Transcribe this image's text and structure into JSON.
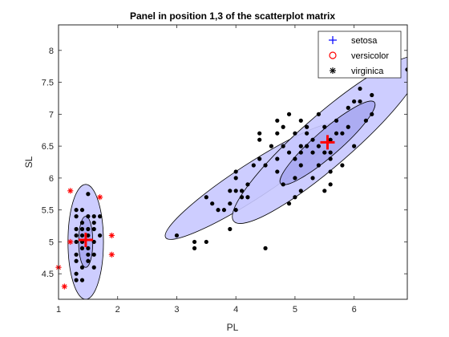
{
  "chart_data": {
    "type": "scatter",
    "title": "Panel in position 1,3 of the scatterplot matrix",
    "xlabel": "PL",
    "ylabel": "SL",
    "xlim": [
      1,
      6.9
    ],
    "ylim": [
      4.1,
      8.4
    ],
    "xticks": [
      1,
      2,
      3,
      4,
      5,
      6
    ],
    "yticks": [
      4.5,
      5,
      5.5,
      6,
      6.5,
      7,
      7.5,
      8
    ],
    "xtick_labels": [
      "1",
      "2",
      "3",
      "4",
      "5",
      "6"
    ],
    "ytick_labels": [
      "4.5",
      "5",
      "5.5",
      "6",
      "6.5",
      "7",
      "7.5",
      "8"
    ],
    "colors": {
      "setosa": "#0000ff",
      "versicolor": "#ff0000",
      "virginica": "#000000",
      "ellipse_fill": "#c8c8ff",
      "ellipse_inner_fill": "#a6a6f0",
      "outlier": "#ff0000",
      "centroid": "#ff0000"
    },
    "legend": {
      "location": "top-right",
      "entries": [
        {
          "label": "setosa",
          "marker": "plus",
          "color": "#0000ff"
        },
        {
          "label": "versicolor",
          "marker": "circle",
          "color": "#ff0000"
        },
        {
          "label": "virginica",
          "marker": "asterisk",
          "color": "#000000"
        }
      ]
    },
    "ellipses": [
      {
        "name": "cluster1-outer",
        "cx": 1.46,
        "cy": 5.0,
        "rx": 0.3,
        "ry": 0.9,
        "angle": 0,
        "level": "outer"
      },
      {
        "name": "cluster1-inner",
        "cx": 1.46,
        "cy": 5.0,
        "rx": 0.12,
        "ry": 0.4,
        "angle": 0,
        "level": "inner"
      },
      {
        "name": "cluster2-versicolor",
        "cx": 4.28,
        "cy": 5.95,
        "rx": 1.75,
        "ry": 0.27,
        "angle": 33,
        "level": "outer"
      },
      {
        "name": "cluster3-outer",
        "cx": 5.55,
        "cy": 6.6,
        "rx": 2.1,
        "ry": 0.4,
        "angle": 41,
        "level": "outer"
      },
      {
        "name": "cluster3-inner",
        "cx": 5.55,
        "cy": 6.55,
        "rx": 1.05,
        "ry": 0.2,
        "angle": 41,
        "level": "inner"
      }
    ],
    "centroids": [
      {
        "name": "centroid-1",
        "x": 1.46,
        "y": 5.03
      },
      {
        "name": "centroid-2",
        "x": 5.55,
        "y": 6.56
      }
    ],
    "outliers": [
      [
        1.0,
        4.6
      ],
      [
        1.1,
        4.3
      ],
      [
        1.2,
        5.8
      ],
      [
        1.7,
        5.7
      ],
      [
        1.2,
        5.0
      ],
      [
        1.9,
        5.1
      ],
      [
        1.9,
        4.8
      ]
    ],
    "points": [
      [
        1.3,
        5.5
      ],
      [
        1.4,
        5.5
      ],
      [
        1.3,
        5.4
      ],
      [
        1.5,
        5.4
      ],
      [
        1.7,
        5.4
      ],
      [
        1.4,
        5.2
      ],
      [
        1.5,
        5.2
      ],
      [
        1.6,
        5.2
      ],
      [
        1.3,
        5.1
      ],
      [
        1.4,
        5.1
      ],
      [
        1.5,
        5.1
      ],
      [
        1.6,
        5.0
      ],
      [
        1.4,
        5.0
      ],
      [
        1.3,
        5.0
      ],
      [
        1.5,
        4.9
      ],
      [
        1.3,
        4.8
      ],
      [
        1.6,
        4.8
      ],
      [
        1.5,
        4.7
      ],
      [
        1.3,
        4.7
      ],
      [
        1.6,
        4.6
      ],
      [
        1.3,
        4.4
      ],
      [
        1.4,
        4.4
      ],
      [
        1.3,
        4.5
      ],
      [
        1.5,
        4.8
      ],
      [
        1.4,
        4.9
      ],
      [
        1.4,
        5.3
      ],
      [
        1.6,
        5.3
      ],
      [
        1.5,
        5.75
      ],
      [
        1.6,
        5.4
      ],
      [
        1.3,
        5.2
      ],
      [
        1.7,
        5.1
      ],
      [
        1.4,
        4.6
      ],
      [
        3.0,
        5.1
      ],
      [
        3.3,
        4.9
      ],
      [
        3.3,
        5.0
      ],
      [
        3.5,
        5.0
      ],
      [
        3.5,
        5.7
      ],
      [
        3.6,
        5.6
      ],
      [
        3.7,
        5.5
      ],
      [
        3.8,
        5.5
      ],
      [
        3.9,
        5.6
      ],
      [
        3.9,
        5.8
      ],
      [
        3.9,
        5.2
      ],
      [
        4.0,
        5.5
      ],
      [
        4.0,
        5.8
      ],
      [
        4.0,
        6.0
      ],
      [
        4.0,
        6.1
      ],
      [
        4.1,
        5.7
      ],
      [
        4.1,
        5.8
      ],
      [
        4.2,
        5.7
      ],
      [
        4.2,
        5.9
      ],
      [
        4.3,
        6.2
      ],
      [
        4.4,
        6.3
      ],
      [
        4.4,
        6.6
      ],
      [
        4.4,
        6.7
      ],
      [
        4.5,
        6.2
      ],
      [
        4.5,
        4.9
      ],
      [
        4.6,
        6.5
      ],
      [
        4.7,
        6.7
      ],
      [
        4.7,
        6.3
      ],
      [
        4.7,
        6.1
      ],
      [
        4.8,
        6.8
      ],
      [
        4.8,
        5.9
      ],
      [
        4.9,
        7.0
      ],
      [
        5.1,
        6.9
      ],
      [
        5.0,
        6.7
      ],
      [
        5.0,
        6.0
      ],
      [
        4.9,
        5.6
      ],
      [
        5.1,
        6.4
      ],
      [
        5.2,
        6.5
      ],
      [
        5.3,
        6.6
      ],
      [
        5.4,
        6.5
      ],
      [
        5.6,
        6.3
      ],
      [
        5.5,
        6.4
      ],
      [
        5.7,
        6.7
      ],
      [
        5.9,
        6.8
      ],
      [
        6.0,
        7.2
      ],
      [
        6.1,
        7.2
      ],
      [
        6.1,
        7.4
      ],
      [
        6.3,
        7.3
      ],
      [
        6.4,
        7.6
      ],
      [
        6.7,
        7.7
      ],
      [
        6.9,
        7.7
      ],
      [
        5.2,
        6.7
      ],
      [
        5.4,
        6.2
      ],
      [
        5.6,
        6.1
      ],
      [
        5.8,
        6.7
      ],
      [
        5.0,
        6.3
      ],
      [
        5.1,
        5.8
      ],
      [
        5.1,
        6.2
      ],
      [
        5.3,
        6.4
      ],
      [
        5.5,
        6.8
      ],
      [
        5.6,
        6.4
      ],
      [
        5.7,
        6.9
      ],
      [
        5.9,
        7.1
      ],
      [
        6.0,
        6.5
      ],
      [
        5.5,
        5.8
      ],
      [
        5.6,
        5.9
      ],
      [
        5.3,
        6.0
      ],
      [
        5.0,
        5.7
      ],
      [
        5.1,
        6.5
      ],
      [
        4.9,
        6.4
      ],
      [
        4.8,
        6.5
      ],
      [
        4.7,
        6.9
      ],
      [
        5.4,
        7.0
      ],
      [
        5.2,
        6.8
      ],
      [
        5.6,
        6.6
      ],
      [
        5.8,
        6.2
      ],
      [
        6.3,
        7.0
      ],
      [
        6.2,
        6.9
      ]
    ]
  }
}
